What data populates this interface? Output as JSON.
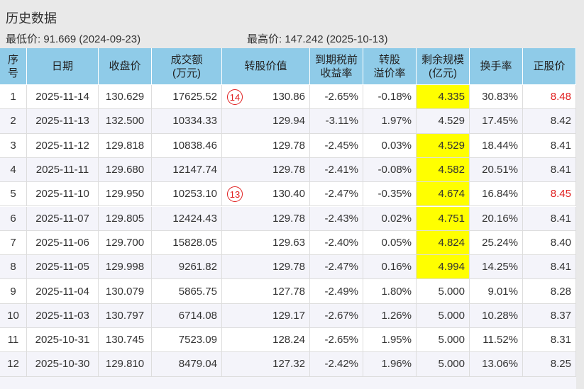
{
  "header": {
    "title": "历史数据",
    "low": "最低价: 91.669 (2024-09-23)",
    "high": "最高价: 147.242 (2025-10-13)"
  },
  "table": {
    "columns": [
      "序\n号",
      "日期",
      "收盘价",
      "成交额\n(万元)",
      "转股价值",
      "到期税前\n收益率",
      "转股\n溢价率",
      "剩余规模\n(亿元)",
      "换手率",
      "正股价"
    ],
    "rows": [
      {
        "cells": [
          "1",
          "2025-11-14",
          "130.629",
          "17625.52",
          "130.86",
          "-2.65%",
          "-0.18%",
          "4.335",
          "30.83%",
          "8.48"
        ],
        "badge": "14",
        "remaining_bg": "#ffff00",
        "stock_color": "#e02020"
      },
      {
        "cells": [
          "2",
          "2025-11-13",
          "132.500",
          "10334.33",
          "129.94",
          "-3.11%",
          "1.97%",
          "4.529",
          "17.45%",
          "8.42"
        ]
      },
      {
        "cells": [
          "3",
          "2025-11-12",
          "129.818",
          "10838.46",
          "129.78",
          "-2.45%",
          "0.03%",
          "4.529",
          "18.44%",
          "8.41"
        ],
        "remaining_bg": "#ffff00"
      },
      {
        "cells": [
          "4",
          "2025-11-11",
          "129.680",
          "12147.74",
          "129.78",
          "-2.41%",
          "-0.08%",
          "4.582",
          "20.51%",
          "8.41"
        ],
        "remaining_bg": "#ffff00"
      },
      {
        "cells": [
          "5",
          "2025-11-10",
          "129.950",
          "10253.10",
          "130.40",
          "-2.47%",
          "-0.35%",
          "4.674",
          "16.84%",
          "8.45"
        ],
        "badge": "13",
        "remaining_bg": "#ffff00",
        "stock_color": "#e02020"
      },
      {
        "cells": [
          "6",
          "2025-11-07",
          "129.805",
          "12424.43",
          "129.78",
          "-2.43%",
          "0.02%",
          "4.751",
          "20.16%",
          "8.41"
        ],
        "remaining_bg": "#ffff00"
      },
      {
        "cells": [
          "7",
          "2025-11-06",
          "129.700",
          "15828.05",
          "129.63",
          "-2.40%",
          "0.05%",
          "4.824",
          "25.24%",
          "8.40"
        ],
        "remaining_bg": "#ffff00"
      },
      {
        "cells": [
          "8",
          "2025-11-05",
          "129.998",
          "9261.82",
          "129.78",
          "-2.47%",
          "0.16%",
          "4.994",
          "14.25%",
          "8.41"
        ],
        "remaining_bg": "#ffff00"
      },
      {
        "cells": [
          "9",
          "2025-11-04",
          "130.079",
          "5865.75",
          "127.78",
          "-2.49%",
          "1.80%",
          "5.000",
          "9.01%",
          "8.28"
        ]
      },
      {
        "cells": [
          "10",
          "2025-11-03",
          "130.797",
          "6714.08",
          "129.17",
          "-2.67%",
          "1.26%",
          "5.000",
          "10.28%",
          "8.37"
        ]
      },
      {
        "cells": [
          "11",
          "2025-10-31",
          "130.745",
          "7523.09",
          "128.24",
          "-2.65%",
          "1.95%",
          "5.000",
          "11.52%",
          "8.31"
        ]
      },
      {
        "cells": [
          "12",
          "2025-10-30",
          "129.810",
          "8479.04",
          "127.32",
          "-2.42%",
          "1.96%",
          "5.000",
          "13.06%",
          "8.25"
        ]
      }
    ]
  }
}
